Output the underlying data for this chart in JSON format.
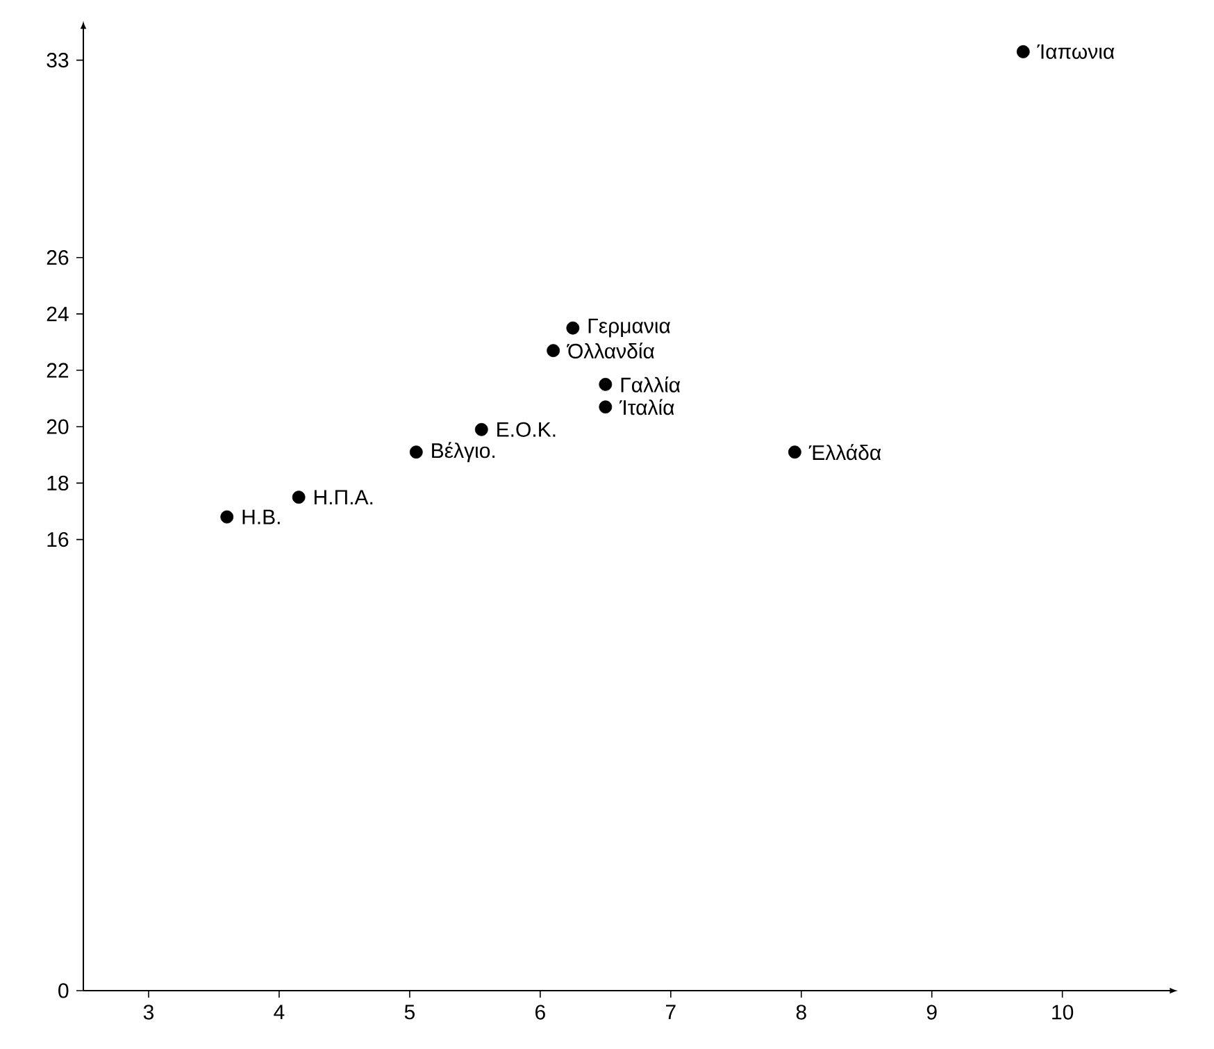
{
  "chart_data": {
    "type": "scatter",
    "color": "#000000",
    "marker": "circle",
    "x": [
      9.7,
      6.25,
      6.1,
      6.5,
      6.5,
      5.55,
      5.05,
      7.95,
      4.15,
      3.6
    ],
    "values": [
      33.3,
      23.5,
      22.7,
      21.5,
      20.7,
      19.9,
      19.1,
      19.1,
      17.5,
      16.8
    ],
    "xlim": [
      2.5,
      10.8
    ],
    "ylim": [
      0,
      34
    ],
    "xticks": [
      3,
      4,
      5,
      6,
      7,
      8,
      9,
      10
    ],
    "yticks": [
      0,
      16,
      18,
      20,
      22,
      24,
      26,
      33
    ],
    "annotations": [
      {
        "text": "Ίαπωνια",
        "x": 9.7,
        "y": 33.3
      },
      {
        "text": "Γερμανια",
        "x": 6.25,
        "y": 23.5
      },
      {
        "text": "Όλλανδία",
        "x": 6.1,
        "y": 22.7
      },
      {
        "text": "Γαλλία",
        "x": 6.5,
        "y": 21.5
      },
      {
        "text": "Ίταλία",
        "x": 6.5,
        "y": 20.7
      },
      {
        "text": "Ε.Ο.Κ.",
        "x": 5.55,
        "y": 19.9
      },
      {
        "text": "Βέλγιο.",
        "x": 5.05,
        "y": 19.1
      },
      {
        "text": "Έλλάδα",
        "x": 7.95,
        "y": 19.1
      },
      {
        "text": "Η.Π.Α.",
        "x": 4.15,
        "y": 17.5
      },
      {
        "text": "Η.Β.",
        "x": 3.6,
        "y": 16.8
      }
    ]
  }
}
